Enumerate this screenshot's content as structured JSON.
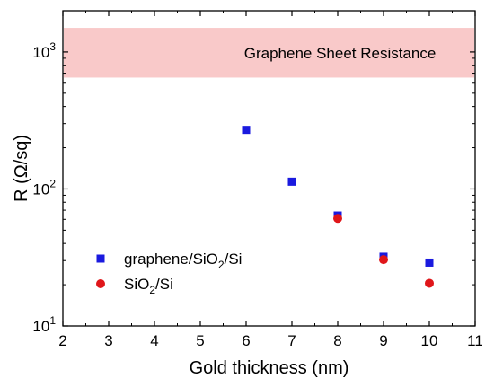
{
  "chart_data": {
    "type": "scatter",
    "title": "",
    "xlabel": "Gold thickness (nm)",
    "ylabel": "R (Ω/sq)",
    "xlim": [
      2,
      11
    ],
    "ylim": [
      10,
      2000
    ],
    "yscale": "log",
    "x_ticks": [
      "2",
      "3",
      "4",
      "5",
      "6",
      "7",
      "8",
      "9",
      "10",
      "11"
    ],
    "y_ticks": [
      {
        "value": 10,
        "base": "10",
        "exp": "1"
      },
      {
        "value": 100,
        "base": "10",
        "exp": "2"
      },
      {
        "value": 1000,
        "base": "10",
        "exp": "3"
      }
    ],
    "band": {
      "label": "Graphene Sheet Resistance",
      "y_range": [
        650,
        1500
      ],
      "color": "#f9c9c9"
    },
    "legend_position": "lower-left",
    "series": [
      {
        "name": "graphene/SiO2/Si",
        "name_parts": {
          "pre": "graphene/SiO",
          "sub": "2",
          "post": "/Si"
        },
        "marker": "square",
        "color": "#1a1adf",
        "x": [
          6,
          7,
          8,
          9,
          10
        ],
        "y": [
          270,
          113,
          64,
          32,
          29
        ]
      },
      {
        "name": "SiO2/Si",
        "name_parts": {
          "pre": "SiO",
          "sub": "2",
          "post": "/Si"
        },
        "marker": "circle",
        "color": "#e0161a",
        "x": [
          8,
          9,
          10
        ],
        "y": [
          61,
          30.5,
          20.5
        ]
      }
    ]
  }
}
